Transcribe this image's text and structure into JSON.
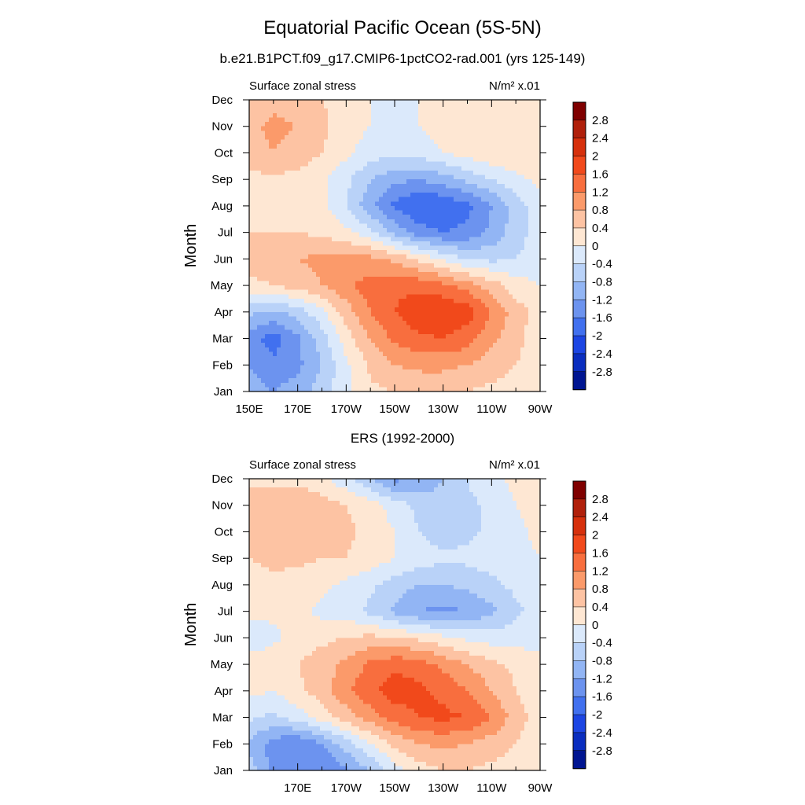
{
  "title": "Equatorial Pacific Ocean (5S-5N)",
  "colorbar": {
    "labels": [
      "2.8",
      "2.4",
      "2",
      "1.6",
      "1.2",
      "0.8",
      "0.4",
      "0",
      "-0.4",
      "-0.8",
      "-1.2",
      "-1.6",
      "-2",
      "-2.4",
      "-2.8"
    ],
    "colors": [
      "#7f0000",
      "#b0200b",
      "#d6300c",
      "#f1491b",
      "#f86e3e",
      "#fb9a6a",
      "#fdc3a3",
      "#fee7d3",
      "#dbe9fb",
      "#b9d2f8",
      "#92b5f4",
      "#6c93ef",
      "#4170ef",
      "#1c45e3",
      "#0a2dbf",
      "#001591"
    ]
  },
  "chart_data": [
    {
      "type": "heatmap",
      "title": "b.e21.B1PCT.f09_g17.CMIP6-1pctCO2-rad.001 (yrs 125-149)",
      "left_string": "Surface zonal stress",
      "right_string": "N/m² x.01",
      "ylabel": "Month",
      "xticklabels": [
        "150E",
        "170E",
        "170W",
        "150W",
        "130W",
        "110W",
        "90W"
      ],
      "yticklabels": [
        "Jan",
        "Feb",
        "Mar",
        "Apr",
        "May",
        "Jun",
        "Jul",
        "Aug",
        "Sep",
        "Oct",
        "Nov",
        "Dec"
      ],
      "xlim": [
        150,
        270
      ],
      "ylim": [
        1,
        12
      ],
      "x": [
        150,
        160,
        170,
        180,
        190,
        200,
        210,
        220,
        230,
        240,
        250,
        260,
        270
      ],
      "y": [
        1,
        2,
        3,
        4,
        5,
        6,
        7,
        8,
        9,
        10,
        11,
        12
      ],
      "z": [
        [
          -1.0,
          -1.2,
          -1.0,
          -0.6,
          -0.1,
          0.3,
          0.4,
          0.5,
          0.5,
          0.4,
          0.3,
          0.2,
          0.1
        ],
        [
          -1.2,
          -1.5,
          -1.3,
          -0.8,
          -0.1,
          0.5,
          0.8,
          0.9,
          0.9,
          0.8,
          0.6,
          0.4,
          0.2
        ],
        [
          -1.4,
          -1.8,
          -1.3,
          -0.6,
          0.2,
          0.8,
          1.3,
          1.5,
          1.6,
          1.4,
          0.9,
          0.5,
          0.2
        ],
        [
          -0.7,
          -0.9,
          -0.6,
          -0.1,
          0.6,
          1.2,
          1.6,
          1.9,
          2.0,
          1.8,
          1.2,
          0.6,
          0.2
        ],
        [
          0.3,
          0.4,
          0.6,
          0.8,
          1.1,
          1.4,
          1.5,
          1.5,
          1.3,
          1.0,
          0.6,
          0.2,
          0.0
        ],
        [
          0.6,
          0.7,
          0.8,
          0.9,
          1.0,
          0.9,
          0.7,
          0.3,
          -0.1,
          -0.4,
          -0.5,
          -0.4,
          -0.2
        ],
        [
          0.4,
          0.4,
          0.4,
          0.3,
          0.1,
          -0.3,
          -0.9,
          -1.4,
          -1.6,
          -1.5,
          -1.1,
          -0.6,
          -0.2
        ],
        [
          0.3,
          0.3,
          0.3,
          0.1,
          -0.4,
          -1.1,
          -1.7,
          -2.0,
          -2.0,
          -1.7,
          -1.2,
          -0.6,
          -0.2
        ],
        [
          0.3,
          0.3,
          0.3,
          0.1,
          -0.3,
          -0.8,
          -1.1,
          -1.2,
          -1.0,
          -0.7,
          -0.4,
          -0.1,
          0.1
        ],
        [
          0.6,
          0.8,
          0.6,
          0.4,
          0.1,
          -0.2,
          -0.3,
          -0.2,
          0.0,
          0.2,
          0.3,
          0.3,
          0.2
        ],
        [
          0.7,
          0.9,
          0.8,
          0.5,
          0.2,
          0.0,
          -0.1,
          0.0,
          0.2,
          0.3,
          0.4,
          0.4,
          0.3
        ],
        [
          0.5,
          0.7,
          0.6,
          0.4,
          0.2,
          0.0,
          -0.1,
          0.0,
          0.1,
          0.2,
          0.3,
          0.3,
          0.2
        ]
      ]
    },
    {
      "type": "heatmap",
      "title": "ERS (1992-2000)",
      "left_string": "Surface zonal stress",
      "right_string": "N/m² x.01",
      "ylabel": "Month",
      "xticklabels": [
        "",
        "170E",
        "170W",
        "150W",
        "130W",
        "110W",
        "90W"
      ],
      "yticklabels": [
        "Jan",
        "Feb",
        "Mar",
        "Apr",
        "May",
        "Jun",
        "Jul",
        "Aug",
        "Sep",
        "Oct",
        "Nov",
        "Dec"
      ],
      "xlim": [
        150,
        270
      ],
      "ylim": [
        1,
        12
      ],
      "x": [
        150,
        160,
        170,
        180,
        190,
        200,
        210,
        220,
        230,
        240,
        250,
        260,
        270
      ],
      "y": [
        1,
        2,
        3,
        4,
        5,
        6,
        7,
        8,
        9,
        10,
        11,
        12
      ],
      "z": [
        [
          -0.6,
          -1.3,
          -1.5,
          -1.6,
          -1.3,
          -0.8,
          -0.2,
          0.2,
          0.4,
          0.4,
          0.3,
          0.2,
          0.1
        ],
        [
          -0.9,
          -1.4,
          -1.6,
          -1.2,
          -0.6,
          0.0,
          0.5,
          0.8,
          0.9,
          0.8,
          0.6,
          0.4,
          0.1
        ],
        [
          -0.3,
          -0.5,
          -0.2,
          0.2,
          0.6,
          1.0,
          1.4,
          1.6,
          1.7,
          1.6,
          1.2,
          0.6,
          0.2
        ],
        [
          0.1,
          0.0,
          0.3,
          0.6,
          1.1,
          1.5,
          1.8,
          1.7,
          1.5,
          1.2,
          0.8,
          0.4,
          0.1
        ],
        [
          0.2,
          0.3,
          0.4,
          0.6,
          0.9,
          1.3,
          1.5,
          1.4,
          1.1,
          0.8,
          0.5,
          0.3,
          0.1
        ],
        [
          -0.3,
          -0.1,
          0.2,
          0.3,
          0.4,
          0.5,
          0.4,
          0.3,
          0.1,
          -0.1,
          -0.2,
          -0.2,
          -0.1
        ],
        [
          0.1,
          0.1,
          0.1,
          -0.1,
          -0.2,
          -0.5,
          -0.9,
          -1.2,
          -1.3,
          -1.2,
          -0.9,
          -0.5,
          -0.2
        ],
        [
          0.2,
          0.3,
          0.2,
          0.1,
          -0.1,
          -0.3,
          -0.6,
          -0.8,
          -0.8,
          -0.7,
          -0.5,
          -0.3,
          -0.1
        ],
        [
          0.4,
          0.5,
          0.5,
          0.4,
          0.4,
          0.2,
          0.0,
          -0.2,
          -0.3,
          -0.3,
          -0.2,
          -0.1,
          0.0
        ],
        [
          0.5,
          0.6,
          0.6,
          0.5,
          0.5,
          0.3,
          0.0,
          -0.4,
          -0.6,
          -0.5,
          -0.3,
          -0.1,
          0.1
        ],
        [
          0.6,
          0.7,
          0.8,
          0.6,
          0.4,
          0.2,
          -0.2,
          -0.5,
          -0.6,
          -0.5,
          -0.3,
          0.0,
          0.2
        ],
        [
          0.3,
          0.3,
          0.2,
          0.1,
          -0.3,
          -0.8,
          -1.3,
          -1.2,
          -0.8,
          -0.4,
          -0.1,
          0.1,
          0.2
        ]
      ]
    }
  ]
}
